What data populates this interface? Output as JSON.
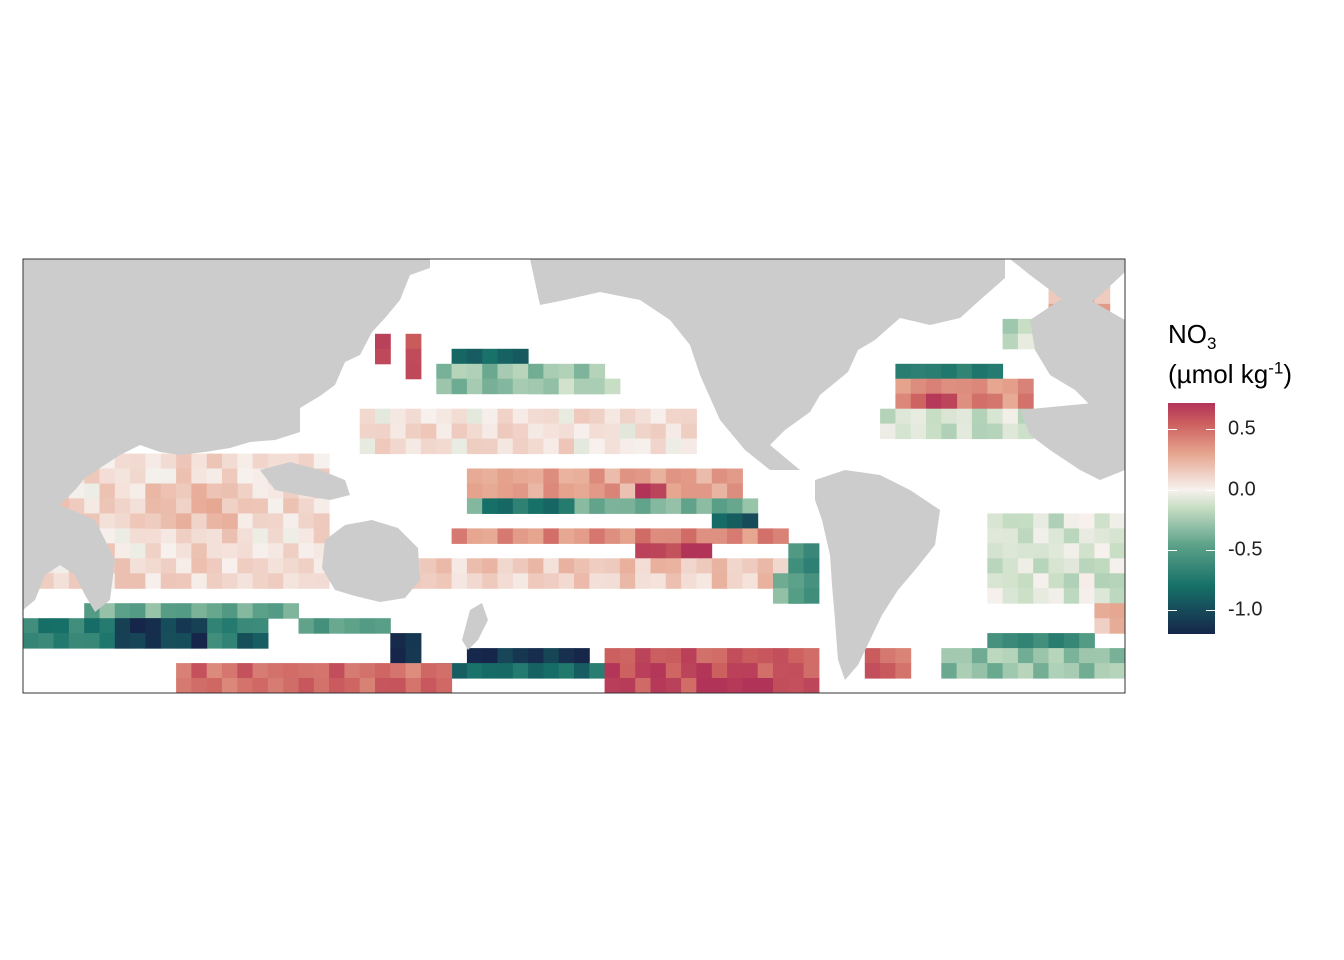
{
  "chart_data": {
    "type": "heatmap",
    "title": "",
    "xlabel": "",
    "ylabel": "",
    "grid": false,
    "legend_position": "right",
    "legend": {
      "title_main": "NO",
      "title_sub": "3",
      "unit_prefix": "(µmol kg",
      "unit_sup": "-1",
      "unit_suffix": ")",
      "ticks": [
        "0.5",
        "0.0",
        "-0.5",
        "-1.0"
      ],
      "tick_values": [
        0.5,
        0.0,
        -0.5,
        -1.0
      ],
      "range": [
        -1.2,
        0.72
      ]
    },
    "colorscale": {
      "stops": [
        {
          "value": -1.2,
          "color": "#16264a"
        },
        {
          "value": -0.8,
          "color": "#167068"
        },
        {
          "value": -0.45,
          "color": "#5fa38a"
        },
        {
          "value": -0.15,
          "color": "#c7dec4"
        },
        {
          "value": 0.0,
          "color": "#f7f1ee"
        },
        {
          "value": 0.3,
          "color": "#e6a58f"
        },
        {
          "value": 0.55,
          "color": "#cc5f5e"
        },
        {
          "value": 0.72,
          "color": "#b23358"
        }
      ],
      "land_color": "#cccccc",
      "nodata_color": "#ffffff"
    },
    "grid_spec": {
      "lon_start": 20,
      "lon_end": 380,
      "lat_start": 80,
      "lat_end": -65,
      "step": 5
    },
    "regions": [
      {
        "lon": [
          135,
          140
        ],
        "lat": [
          55,
          45
        ],
        "value": 0.7
      },
      {
        "lon": [
          145,
          150
        ],
        "lat": [
          55,
          40
        ],
        "value": 0.6
      },
      {
        "lon": [
          160,
          185
        ],
        "lat": [
          50,
          40
        ],
        "value": -0.9
      },
      {
        "lon": [
          155,
          210
        ],
        "lat": [
          45,
          35
        ],
        "value": -0.3
      },
      {
        "lon": [
          185,
          215
        ],
        "lat": [
          40,
          35
        ],
        "value": -0.2
      },
      {
        "lon": [
          130,
          240
        ],
        "lat": [
          30,
          15
        ],
        "value": 0.05
      },
      {
        "lon": [
          165,
          255
        ],
        "lat": [
          10,
          0
        ],
        "value": 0.3
      },
      {
        "lon": [
          220,
          230
        ],
        "lat": [
          5,
          0
        ],
        "value": 0.6
      },
      {
        "lon": [
          165,
          260
        ],
        "lat": [
          0,
          -5
        ],
        "value": -0.4
      },
      {
        "lon": [
          170,
          200
        ],
        "lat": [
          0,
          -5
        ],
        "value": -0.8
      },
      {
        "lon": [
          245,
          260
        ],
        "lat": [
          -5,
          -10
        ],
        "value": -0.9
      },
      {
        "lon": [
          160,
          270
        ],
        "lat": [
          -10,
          -15
        ],
        "value": 0.4
      },
      {
        "lon": [
          220,
          245
        ],
        "lat": [
          -15,
          -20
        ],
        "value": 0.65
      },
      {
        "lon": [
          140,
          270
        ],
        "lat": [
          -20,
          -30
        ],
        "value": 0.15
      },
      {
        "lon": [
          270,
          280
        ],
        "lat": [
          -15,
          -35
        ],
        "value": -0.6
      },
      {
        "lon": [
          265,
          275
        ],
        "lat": [
          -25,
          -35
        ],
        "value": -0.4
      },
      {
        "lon": [
          305,
          340
        ],
        "lat": [
          45,
          40
        ],
        "value": -0.7
      },
      {
        "lon": [
          305,
          350
        ],
        "lat": [
          40,
          30
        ],
        "value": 0.4
      },
      {
        "lon": [
          310,
          325
        ],
        "lat": [
          35,
          30
        ],
        "value": 0.6
      },
      {
        "lon": [
          300,
          350
        ],
        "lat": [
          30,
          20
        ],
        "value": -0.1
      },
      {
        "lon": [
          335,
          380
        ],
        "lat": [
          -5,
          -35
        ],
        "value": -0.1
      },
      {
        "lon": [
          20,
          120
        ],
        "lat": [
          15,
          -30
        ],
        "value": 0.08
      },
      {
        "lon": [
          60,
          90
        ],
        "lat": [
          5,
          -10
        ],
        "value": 0.2
      },
      {
        "lon": [
          40,
          110
        ],
        "lat": [
          -35,
          -40
        ],
        "value": -0.4
      },
      {
        "lon": [
          20,
          100
        ],
        "lat": [
          -40,
          -50
        ],
        "value": -0.7
      },
      {
        "lon": [
          50,
          80
        ],
        "lat": [
          -40,
          -50
        ],
        "value": -1.1
      },
      {
        "lon": [
          90,
          100
        ],
        "lat": [
          -45,
          -50
        ],
        "value": -0.9
      },
      {
        "lon": [
          110,
          140
        ],
        "lat": [
          -40,
          -45
        ],
        "value": -0.5
      },
      {
        "lon": [
          140,
          150
        ],
        "lat": [
          -45,
          -55
        ],
        "value": -1.2
      },
      {
        "lon": [
          165,
          205
        ],
        "lat": [
          -50,
          -55
        ],
        "value": -1.1
      },
      {
        "lon": [
          155,
          210
        ],
        "lat": [
          -55,
          -60
        ],
        "value": -0.8
      },
      {
        "lon": [
          70,
          160
        ],
        "lat": [
          -55,
          -65
        ],
        "value": 0.5
      },
      {
        "lon": [
          210,
          280
        ],
        "lat": [
          -50,
          -65
        ],
        "value": 0.6
      },
      {
        "lon": [
          240,
          270
        ],
        "lat": [
          -60,
          -65
        ],
        "value": 0.72
      },
      {
        "lon": [
          295,
          310
        ],
        "lat": [
          -50,
          -60
        ],
        "value": 0.5
      },
      {
        "lon": [
          335,
          370
        ],
        "lat": [
          -45,
          -55
        ],
        "value": -0.6
      },
      {
        "lon": [
          370,
          380
        ],
        "lat": [
          -35,
          -45
        ],
        "value": 0.2
      },
      {
        "lon": [
          320,
          380
        ],
        "lat": [
          -50,
          -60
        ],
        "value": -0.3
      },
      {
        "lon": [
          355,
          375
        ],
        "lat": [
          80,
          60
        ],
        "value": 0.25
      },
      {
        "lon": [
          340,
          360
        ],
        "lat": [
          60,
          50
        ],
        "value": -0.15
      }
    ]
  }
}
